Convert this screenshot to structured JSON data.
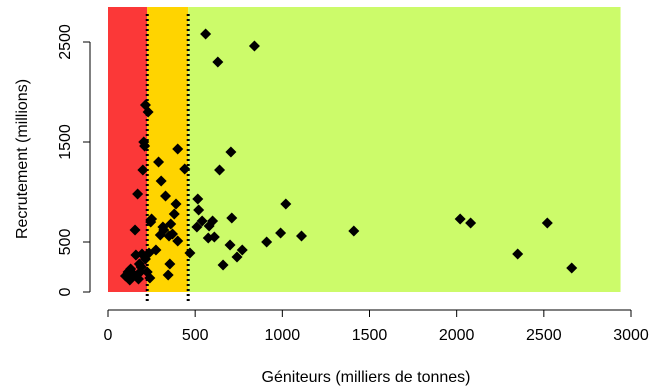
{
  "chart_data": {
    "type": "scatter",
    "xlabel": "Géniteurs (milliers de tonnes)",
    "ylabel": "Recrutement (millions)",
    "xlim": [
      0,
      3000
    ],
    "ylim": [
      0,
      2600
    ],
    "x_ticks": [
      0,
      500,
      1000,
      1500,
      2000,
      2500,
      3000
    ],
    "y_ticks": [
      0,
      500,
      1500,
      2500
    ],
    "zones": [
      {
        "name": "red",
        "from": 0,
        "to": 225,
        "color": "#fb3838"
      },
      {
        "name": "orange",
        "from": 225,
        "to": 460,
        "color": "#ffd400"
      },
      {
        "name": "green",
        "from": 460,
        "to": 2940,
        "color": "#ccfb6a"
      }
    ],
    "zones_top": 2850,
    "vlines": [
      225,
      460
    ],
    "points": [
      [
        100,
        160
      ],
      [
        115,
        200
      ],
      [
        125,
        120
      ],
      [
        130,
        230
      ],
      [
        145,
        180
      ],
      [
        155,
        620
      ],
      [
        160,
        370
      ],
      [
        170,
        980
      ],
      [
        175,
        130
      ],
      [
        180,
        280
      ],
      [
        185,
        200
      ],
      [
        190,
        250
      ],
      [
        195,
        380
      ],
      [
        200,
        1220
      ],
      [
        205,
        1500
      ],
      [
        210,
        1460
      ],
      [
        215,
        1870
      ],
      [
        215,
        330
      ],
      [
        225,
        200
      ],
      [
        230,
        1800
      ],
      [
        235,
        390
      ],
      [
        240,
        140
      ],
      [
        245,
        700
      ],
      [
        250,
        730
      ],
      [
        275,
        420
      ],
      [
        290,
        1300
      ],
      [
        300,
        570
      ],
      [
        305,
        1110
      ],
      [
        315,
        650
      ],
      [
        320,
        620
      ],
      [
        330,
        960
      ],
      [
        345,
        170
      ],
      [
        350,
        560
      ],
      [
        355,
        280
      ],
      [
        360,
        680
      ],
      [
        370,
        580
      ],
      [
        380,
        780
      ],
      [
        390,
        880
      ],
      [
        400,
        1430
      ],
      [
        400,
        510
      ],
      [
        440,
        1230
      ],
      [
        470,
        390
      ],
      [
        510,
        650
      ],
      [
        515,
        930
      ],
      [
        520,
        820
      ],
      [
        540,
        710
      ],
      [
        560,
        2580
      ],
      [
        575,
        540
      ],
      [
        580,
        660
      ],
      [
        600,
        710
      ],
      [
        610,
        550
      ],
      [
        630,
        2300
      ],
      [
        640,
        1220
      ],
      [
        660,
        270
      ],
      [
        700,
        470
      ],
      [
        705,
        1400
      ],
      [
        710,
        740
      ],
      [
        740,
        350
      ],
      [
        770,
        420
      ],
      [
        840,
        2460
      ],
      [
        910,
        500
      ],
      [
        990,
        590
      ],
      [
        1020,
        880
      ],
      [
        1110,
        560
      ],
      [
        1410,
        610
      ],
      [
        2020,
        730
      ],
      [
        2080,
        690
      ],
      [
        2350,
        380
      ],
      [
        2520,
        690
      ],
      [
        2660,
        240
      ]
    ]
  }
}
